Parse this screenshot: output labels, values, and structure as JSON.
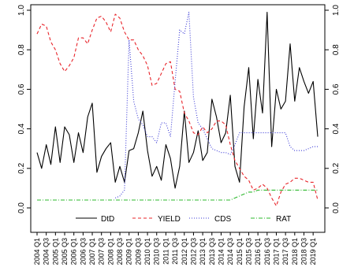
{
  "chart_data": {
    "type": "line",
    "title": "",
    "xlabel": "",
    "ylabel_left": "",
    "ylabel_right": "",
    "ylim": [
      0,
      1
    ],
    "grid": false,
    "legend_placement": "bottom-center",
    "y_ticks": [
      0.0,
      0.2,
      0.4,
      0.6,
      0.8,
      1.0
    ],
    "y_tick_labels_left": [
      "0.0",
      "0.2",
      "0.4",
      "0.6",
      "0.8",
      "1.0"
    ],
    "y_tick_labels_right": [
      "0.0",
      "0.2",
      "0.4",
      "0.6",
      "0.8",
      "1.0"
    ],
    "x_tick_labels": [
      "2004 Q1",
      "2004 Q3",
      "2005 Q1",
      "2005 Q3",
      "2006 Q1",
      "2006 Q3",
      "2007 Q1",
      "2007 Q3",
      "2008 Q1",
      "2008 Q3",
      "2009 Q1",
      "2009 Q3",
      "2010 Q1",
      "2010 Q3",
      "2011 Q1",
      "2011 Q3",
      "2012 Q1",
      "2012 Q3",
      "2013 Q1",
      "2013 Q3",
      "2014 Q1",
      "2014 Q3",
      "2015 Q1",
      "2015 Q3",
      "2016 Q1",
      "2016 Q3",
      "2017 Q1",
      "2017 Q3",
      "2018 Q1",
      "2018 Q3",
      "2019 Q1"
    ],
    "x": [
      "2004 Q1",
      "2004 Q2",
      "2004 Q3",
      "2004 Q4",
      "2005 Q1",
      "2005 Q2",
      "2005 Q3",
      "2005 Q4",
      "2006 Q1",
      "2006 Q2",
      "2006 Q3",
      "2006 Q4",
      "2007 Q1",
      "2007 Q2",
      "2007 Q3",
      "2007 Q4",
      "2008 Q1",
      "2008 Q2",
      "2008 Q3",
      "2008 Q4",
      "2009 Q1",
      "2009 Q2",
      "2009 Q3",
      "2009 Q4",
      "2010 Q1",
      "2010 Q2",
      "2010 Q3",
      "2010 Q4",
      "2011 Q1",
      "2011 Q2",
      "2011 Q3",
      "2011 Q4",
      "2012 Q1",
      "2012 Q2",
      "2012 Q3",
      "2012 Q4",
      "2013 Q1",
      "2013 Q2",
      "2013 Q3",
      "2013 Q4",
      "2014 Q1",
      "2014 Q2",
      "2014 Q3",
      "2014 Q4",
      "2015 Q1",
      "2015 Q2",
      "2015 Q3",
      "2015 Q4",
      "2016 Q1",
      "2016 Q2",
      "2016 Q3",
      "2016 Q4",
      "2017 Q1",
      "2017 Q2",
      "2017 Q3",
      "2017 Q4",
      "2018 Q1",
      "2018 Q2",
      "2018 Q3",
      "2018 Q4",
      "2019 Q1",
      "2019 Q2"
    ],
    "series": [
      {
        "name": "DtD",
        "color": "#000000",
        "dash": "solid",
        "values": [
          0.28,
          0.2,
          0.32,
          0.22,
          0.41,
          0.23,
          0.41,
          0.37,
          0.23,
          0.38,
          0.28,
          0.46,
          0.53,
          0.18,
          0.26,
          0.3,
          0.33,
          0.13,
          0.21,
          0.13,
          0.29,
          0.3,
          0.38,
          0.49,
          0.29,
          0.16,
          0.21,
          0.14,
          0.32,
          0.25,
          0.1,
          0.21,
          0.49,
          0.23,
          0.28,
          0.39,
          0.24,
          0.28,
          0.55,
          0.46,
          0.33,
          0.38,
          0.57,
          0.21,
          0.13,
          0.51,
          0.71,
          0.35,
          0.65,
          0.48,
          0.99,
          0.31,
          0.6,
          0.5,
          0.54,
          0.83,
          0.54,
          0.71,
          0.64,
          0.58,
          0.64,
          0.36
        ]
      },
      {
        "name": "YIELD",
        "color": "#e8242a",
        "dash": "dashed",
        "values": [
          0.88,
          0.93,
          0.92,
          0.84,
          0.8,
          0.73,
          0.69,
          0.72,
          0.76,
          0.86,
          0.86,
          0.83,
          0.9,
          0.96,
          0.97,
          0.94,
          0.89,
          0.98,
          0.96,
          0.89,
          0.85,
          0.85,
          0.8,
          0.77,
          0.72,
          0.62,
          0.63,
          0.68,
          0.73,
          0.74,
          0.6,
          0.59,
          0.48,
          0.44,
          0.38,
          0.37,
          0.41,
          0.38,
          0.4,
          0.44,
          0.44,
          0.42,
          0.32,
          0.24,
          0.2,
          0.16,
          0.14,
          0.09,
          0.1,
          0.12,
          0.1,
          0.05,
          0.01,
          0.08,
          0.12,
          0.13,
          0.15,
          0.15,
          0.14,
          0.13,
          0.13,
          0.04
        ]
      },
      {
        "name": "CDS",
        "color": "#3b3bd6",
        "dash": "dotted",
        "values": [
          null,
          null,
          null,
          null,
          null,
          null,
          null,
          null,
          null,
          null,
          null,
          null,
          null,
          null,
          null,
          null,
          null,
          0.05,
          0.06,
          0.09,
          0.85,
          0.54,
          0.45,
          0.42,
          0.36,
          0.36,
          0.33,
          0.43,
          0.43,
          0.36,
          0.64,
          0.9,
          0.88,
          0.99,
          0.56,
          0.43,
          0.4,
          0.35,
          0.3,
          0.29,
          0.28,
          0.28,
          0.27,
          0.32,
          0.38,
          0.38,
          0.38,
          0.38,
          0.38,
          0.38,
          0.38,
          0.38,
          0.38,
          0.38,
          0.38,
          0.31,
          0.29,
          0.29,
          0.29,
          0.3,
          0.31,
          0.31
        ]
      },
      {
        "name": "RAT",
        "color": "#2db82d",
        "dash": "dash-dot",
        "values": [
          0.04,
          0.04,
          0.04,
          0.04,
          0.04,
          0.04,
          0.04,
          0.04,
          0.04,
          0.04,
          0.04,
          0.04,
          0.04,
          0.04,
          0.04,
          0.04,
          0.04,
          0.04,
          0.04,
          0.04,
          0.04,
          0.04,
          0.04,
          0.04,
          0.04,
          0.04,
          0.04,
          0.04,
          0.04,
          0.04,
          0.04,
          0.04,
          0.04,
          0.04,
          0.04,
          0.04,
          0.04,
          0.04,
          0.04,
          0.04,
          0.04,
          0.04,
          0.04,
          0.05,
          0.06,
          0.07,
          0.08,
          0.08,
          0.09,
          0.09,
          0.09,
          0.09,
          0.09,
          0.09,
          0.09,
          0.09,
          0.09,
          0.09,
          0.09,
          0.09,
          0.09,
          0.09
        ]
      }
    ]
  }
}
